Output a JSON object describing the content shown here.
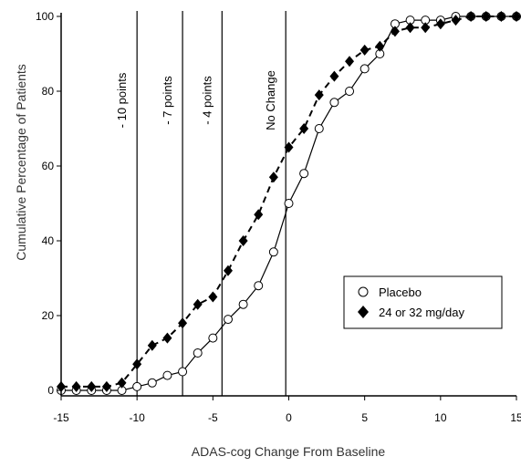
{
  "chart_data": {
    "type": "line",
    "title": "",
    "xlabel": "ADAS-cog Change From Baseline",
    "ylabel": "Cumulative  Percentage of Patients",
    "xlim": [
      -15,
      15
    ],
    "ylim": [
      0,
      100
    ],
    "x_ticks": [
      -15,
      -10,
      -5,
      0,
      5,
      10,
      15
    ],
    "x_tick_labels": [
      "-15",
      "-10",
      "-5",
      "0",
      "5",
      "10",
      "15"
    ],
    "y_ticks": [
      0,
      20,
      40,
      60,
      80,
      100
    ],
    "y_tick_labels": [
      "0",
      "20",
      "40",
      "60",
      "80",
      "100"
    ],
    "grid": false,
    "legend_position": "right",
    "reference_lines": [
      {
        "x": -10,
        "label": "- 10 points"
      },
      {
        "x": -7,
        "label": "- 7 points"
      },
      {
        "x": -4.4,
        "label": "- 4 points"
      },
      {
        "x": -0.2,
        "label": "No Change"
      }
    ],
    "series": [
      {
        "name": "Placebo",
        "marker": "open-circle",
        "line_style": "solid",
        "x": [
          -15,
          -14,
          -13,
          -12,
          -11,
          -10,
          -9,
          -8,
          -7,
          -6,
          -5,
          -4,
          -3,
          -2,
          -1,
          0,
          1,
          2,
          3,
          4,
          5,
          6,
          7,
          8,
          9,
          10,
          11,
          12,
          13,
          14,
          15
        ],
        "values": [
          0,
          0,
          0,
          0,
          0,
          1,
          2,
          4,
          5,
          10,
          14,
          19,
          23,
          28,
          37,
          50,
          58,
          70,
          77,
          80,
          86,
          90,
          98,
          99,
          99,
          99,
          100,
          100,
          100,
          100,
          100
        ]
      },
      {
        "name": "24 or 32 mg/day",
        "marker": "filled-diamond",
        "line_style": "dashed",
        "x": [
          -15,
          -14,
          -13,
          -12,
          -11,
          -10,
          -9,
          -8,
          -7,
          -6,
          -5,
          -4,
          -3,
          -2,
          -1,
          0,
          1,
          2,
          3,
          4,
          5,
          6,
          7,
          8,
          9,
          10,
          11,
          12,
          13,
          14,
          15
        ],
        "values": [
          1,
          1,
          1,
          1,
          2,
          7,
          12,
          14,
          18,
          23,
          25,
          32,
          40,
          47,
          57,
          65,
          70,
          79,
          84,
          88,
          91,
          92,
          96,
          97,
          97,
          98,
          99,
          100,
          100,
          100,
          100
        ]
      }
    ]
  }
}
